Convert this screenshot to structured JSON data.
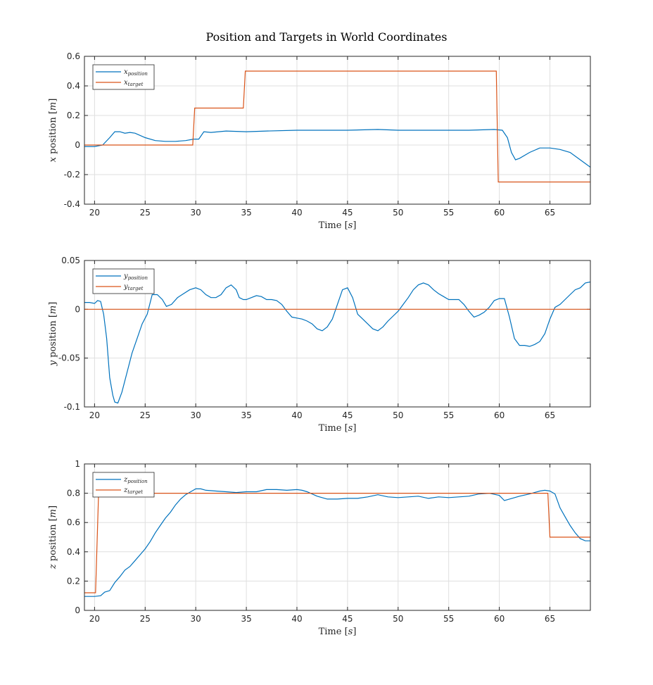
{
  "title": "Position and Targets in World Coordinates",
  "colors": {
    "position": "#0072BD",
    "target": "#D95319"
  },
  "chart_data": [
    {
      "type": "line",
      "xlabel": "Time [s]",
      "ylabel": "x position [m]",
      "xlim": [
        19,
        69
      ],
      "ylim": [
        -0.4,
        0.6
      ],
      "xticks": [
        "20",
        "25",
        "30",
        "35",
        "40",
        "45",
        "50",
        "55",
        "60",
        "65"
      ],
      "yticks": [
        "-0.4",
        "-0.2",
        "0",
        "0.2",
        "0.4",
        "0.6"
      ],
      "grid": true,
      "legend_placement": "top-left",
      "series": [
        {
          "name": "x_position",
          "role": "position",
          "x": [
            19,
            20,
            20.8,
            21.5,
            22,
            22.5,
            23,
            23.5,
            24,
            25,
            26,
            27,
            28,
            29,
            29.8,
            30.3,
            30.8,
            31.5,
            33,
            35,
            37,
            40,
            42,
            45,
            48,
            50,
            52,
            55,
            57,
            59.5,
            60.3,
            60.8,
            61.2,
            61.6,
            62,
            63,
            64,
            65,
            66,
            67,
            68,
            69
          ],
          "y": [
            -0.01,
            -0.01,
            0,
            0.05,
            0.09,
            0.09,
            0.08,
            0.085,
            0.08,
            0.05,
            0.03,
            0.025,
            0.025,
            0.03,
            0.04,
            0.04,
            0.09,
            0.085,
            0.095,
            0.09,
            0.095,
            0.1,
            0.1,
            0.1,
            0.105,
            0.1,
            0.1,
            0.1,
            0.1,
            0.105,
            0.1,
            0.05,
            -0.05,
            -0.1,
            -0.09,
            -0.05,
            -0.02,
            -0.02,
            -0.03,
            -0.05,
            -0.1,
            -0.15
          ]
        },
        {
          "name": "x_target",
          "role": "target",
          "x": [
            19,
            29.7,
            29.9,
            34.7,
            34.9,
            59.7,
            59.9,
            69
          ],
          "y": [
            0,
            0,
            0.25,
            0.25,
            0.5,
            0.5,
            -0.25,
            -0.25
          ]
        }
      ],
      "legend": [
        {
          "base": "x",
          "sub": "position",
          "role": "position"
        },
        {
          "base": "x",
          "sub": "target",
          "role": "target"
        }
      ]
    },
    {
      "type": "line",
      "xlabel": "Time [s]",
      "ylabel": "y position [m]",
      "xlim": [
        19,
        69
      ],
      "ylim": [
        -0.1,
        0.05
      ],
      "xticks": [
        "20",
        "25",
        "30",
        "35",
        "40",
        "45",
        "50",
        "55",
        "60",
        "65"
      ],
      "yticks": [
        "-0.1",
        "-0.05",
        "0",
        "0.05"
      ],
      "grid": true,
      "legend_placement": "top-left",
      "series": [
        {
          "name": "y_position",
          "role": "position",
          "x": [
            19,
            19.5,
            20,
            20.3,
            20.6,
            20.9,
            21.2,
            21.5,
            21.8,
            22,
            22.3,
            22.7,
            23.2,
            23.7,
            24.2,
            24.7,
            25.2,
            25.7,
            26.2,
            26.7,
            27.1,
            27.6,
            28.2,
            28.8,
            29.4,
            30,
            30.5,
            31,
            31.5,
            32,
            32.5,
            33,
            33.5,
            34,
            34.3,
            34.7,
            35,
            35.5,
            36,
            36.5,
            37,
            37.5,
            38,
            38.5,
            39,
            39.5,
            40,
            40.5,
            41,
            41.5,
            42,
            42.5,
            43,
            43.5,
            44,
            44.5,
            45,
            45.5,
            46,
            46.5,
            47,
            47.5,
            48,
            48.5,
            49,
            49.5,
            50,
            50.5,
            51,
            51.5,
            52,
            52.5,
            53,
            53.5,
            54,
            54.5,
            55,
            55.5,
            56,
            56.5,
            57,
            57.5,
            58,
            58.5,
            59,
            59.5,
            60,
            60.5,
            61,
            61.5,
            62,
            62.5,
            63,
            63.5,
            64,
            64.5,
            65,
            65.5,
            66,
            66.5,
            67,
            67.5,
            68,
            68.5,
            69
          ],
          "y": [
            0.007,
            0.007,
            0.006,
            0.009,
            0.008,
            -0.005,
            -0.03,
            -0.07,
            -0.088,
            -0.095,
            -0.096,
            -0.085,
            -0.065,
            -0.045,
            -0.03,
            -0.015,
            -0.005,
            0.015,
            0.015,
            0.01,
            0.003,
            0.005,
            0.012,
            0.016,
            0.02,
            0.022,
            0.02,
            0.015,
            0.012,
            0.012,
            0.015,
            0.022,
            0.025,
            0.02,
            0.012,
            0.01,
            0.01,
            0.012,
            0.014,
            0.013,
            0.01,
            0.01,
            0.009,
            0.005,
            -0.002,
            -0.008,
            -0.009,
            -0.01,
            -0.012,
            -0.015,
            -0.02,
            -0.022,
            -0.018,
            -0.01,
            0.005,
            0.02,
            0.022,
            0.012,
            -0.005,
            -0.01,
            -0.015,
            -0.02,
            -0.022,
            -0.018,
            -0.012,
            -0.007,
            -0.002,
            0.005,
            0.012,
            0.02,
            0.025,
            0.027,
            0.025,
            0.02,
            0.016,
            0.013,
            0.01,
            0.01,
            0.01,
            0.005,
            -0.002,
            -0.008,
            -0.006,
            -0.003,
            0.002,
            0.009,
            0.011,
            0.011,
            -0.008,
            -0.03,
            -0.037,
            -0.037,
            -0.038,
            -0.036,
            -0.033,
            -0.025,
            -0.01,
            0.002,
            0.005,
            0.01,
            0.015,
            0.02,
            0.022,
            0.027,
            0.028
          ]
        },
        {
          "name": "y_target",
          "role": "target",
          "x": [
            19,
            69
          ],
          "y": [
            0,
            0
          ]
        }
      ],
      "legend": [
        {
          "base": "y",
          "sub": "position",
          "role": "position"
        },
        {
          "base": "y",
          "sub": "target",
          "role": "target"
        }
      ]
    },
    {
      "type": "line",
      "xlabel": "Time [s]",
      "ylabel": "z position [m]",
      "xlim": [
        19,
        69
      ],
      "ylim": [
        0,
        1
      ],
      "xticks": [
        "20",
        "25",
        "30",
        "35",
        "40",
        "45",
        "50",
        "55",
        "60",
        "65"
      ],
      "yticks": [
        "0",
        "0.2",
        "0.4",
        "0.6",
        "0.8",
        "1"
      ],
      "grid": true,
      "legend_placement": "top-left",
      "series": [
        {
          "name": "z_position",
          "role": "position",
          "x": [
            19,
            20,
            20.6,
            21,
            21.5,
            22,
            22.5,
            23,
            23.5,
            24,
            24.5,
            25,
            25.5,
            26,
            26.5,
            27,
            27.5,
            28,
            28.5,
            29,
            29.5,
            30,
            30.5,
            31,
            32,
            33,
            34,
            35,
            36,
            37,
            38,
            39,
            40,
            40.5,
            41,
            42,
            43,
            44,
            45,
            46,
            47,
            48,
            49,
            50,
            51,
            52,
            53,
            54,
            55,
            56,
            57,
            58,
            59,
            60,
            60.5,
            61,
            62,
            63,
            64,
            64.5,
            65,
            65.5,
            66,
            66.5,
            67,
            67.5,
            68,
            68.5,
            69
          ],
          "y": [
            0.095,
            0.095,
            0.1,
            0.125,
            0.135,
            0.19,
            0.23,
            0.275,
            0.3,
            0.34,
            0.38,
            0.42,
            0.47,
            0.53,
            0.58,
            0.63,
            0.67,
            0.72,
            0.76,
            0.79,
            0.81,
            0.83,
            0.83,
            0.82,
            0.815,
            0.81,
            0.805,
            0.81,
            0.81,
            0.825,
            0.825,
            0.82,
            0.825,
            0.82,
            0.81,
            0.78,
            0.76,
            0.76,
            0.765,
            0.765,
            0.775,
            0.79,
            0.775,
            0.77,
            0.775,
            0.78,
            0.765,
            0.775,
            0.77,
            0.775,
            0.78,
            0.795,
            0.8,
            0.785,
            0.75,
            0.76,
            0.78,
            0.795,
            0.815,
            0.82,
            0.815,
            0.795,
            0.7,
            0.64,
            0.58,
            0.53,
            0.49,
            0.475,
            0.475
          ]
        },
        {
          "name": "z_target",
          "role": "target",
          "x": [
            19,
            20.1,
            20.4,
            64.8,
            65,
            69
          ],
          "y": [
            0.12,
            0.12,
            0.8,
            0.8,
            0.5,
            0.5
          ]
        }
      ],
      "legend": [
        {
          "base": "z",
          "sub": "position",
          "role": "position"
        },
        {
          "base": "z",
          "sub": "target",
          "role": "target"
        }
      ]
    }
  ]
}
